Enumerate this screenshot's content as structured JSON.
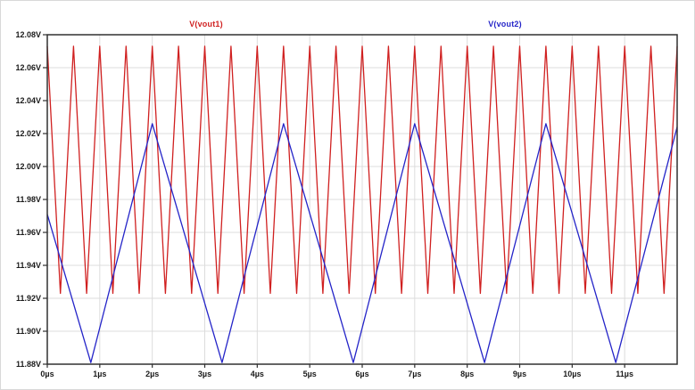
{
  "window": {
    "kind": "waveform-viewer"
  },
  "colors": {
    "trace1": "#d02020",
    "trace2": "#2424c8",
    "grid": "#dcdcdc",
    "axis_border": "#303030",
    "tick_text": "#1a1a1a",
    "background": "#ffffff"
  },
  "chart_data": {
    "type": "line",
    "title": "",
    "xlim": [
      0,
      12
    ],
    "ylim": [
      11.88,
      12.08
    ],
    "grid": true,
    "legend_position": "top-inside",
    "x_ticks": [
      {
        "value": 0,
        "label": "0µs"
      },
      {
        "value": 1,
        "label": "1µs"
      },
      {
        "value": 2,
        "label": "2µs"
      },
      {
        "value": 3,
        "label": "3µs"
      },
      {
        "value": 4,
        "label": "4µs"
      },
      {
        "value": 5,
        "label": "5µs"
      },
      {
        "value": 6,
        "label": "6µs"
      },
      {
        "value": 7,
        "label": "7µs"
      },
      {
        "value": 8,
        "label": "8µs"
      },
      {
        "value": 9,
        "label": "9µs"
      },
      {
        "value": 10,
        "label": "10µs"
      },
      {
        "value": 11,
        "label": "11µs"
      }
    ],
    "y_ticks": [
      {
        "value": 12.08,
        "label": "12.08V"
      },
      {
        "value": 12.06,
        "label": "12.06V"
      },
      {
        "value": 12.04,
        "label": "12.04V"
      },
      {
        "value": 12.02,
        "label": "12.02V"
      },
      {
        "value": 12.0,
        "label": "12.00V"
      },
      {
        "value": 11.98,
        "label": "11.98V"
      },
      {
        "value": 11.96,
        "label": "11.96V"
      },
      {
        "value": 11.94,
        "label": "11.94V"
      },
      {
        "value": 11.92,
        "label": "11.92V"
      },
      {
        "value": 11.9,
        "label": "11.90V"
      },
      {
        "value": 11.88,
        "label": "11.88V"
      }
    ],
    "series": [
      {
        "name": "V(vout1)",
        "color": "#d02020",
        "waveform": "triangle",
        "period_us": 0.5,
        "min_v": 11.923,
        "max_v": 12.073,
        "points": [
          [
            0,
            12.073
          ],
          [
            0.25,
            11.923
          ],
          [
            0.5,
            12.073
          ],
          [
            0.75,
            11.923
          ],
          [
            1,
            12.073
          ],
          [
            1.25,
            11.923
          ],
          [
            1.5,
            12.073
          ],
          [
            1.75,
            11.923
          ],
          [
            2,
            12.073
          ],
          [
            2.25,
            11.923
          ],
          [
            2.5,
            12.073
          ],
          [
            2.75,
            11.923
          ],
          [
            3,
            12.073
          ],
          [
            3.25,
            11.923
          ],
          [
            3.5,
            12.073
          ],
          [
            3.75,
            11.923
          ],
          [
            4,
            12.073
          ],
          [
            4.25,
            11.923
          ],
          [
            4.5,
            12.073
          ],
          [
            4.75,
            11.923
          ],
          [
            5,
            12.073
          ],
          [
            5.25,
            11.923
          ],
          [
            5.5,
            12.073
          ],
          [
            5.75,
            11.923
          ],
          [
            6,
            12.073
          ],
          [
            6.25,
            11.923
          ],
          [
            6.5,
            12.073
          ],
          [
            6.75,
            11.923
          ],
          [
            7,
            12.073
          ],
          [
            7.25,
            11.923
          ],
          [
            7.5,
            12.073
          ],
          [
            7.75,
            11.923
          ],
          [
            8,
            12.073
          ],
          [
            8.25,
            11.923
          ],
          [
            8.5,
            12.073
          ],
          [
            8.75,
            11.923
          ],
          [
            9,
            12.073
          ],
          [
            9.25,
            11.923
          ],
          [
            9.5,
            12.073
          ],
          [
            9.75,
            11.923
          ],
          [
            10,
            12.073
          ],
          [
            10.25,
            11.923
          ],
          [
            10.5,
            12.073
          ],
          [
            10.75,
            11.923
          ],
          [
            11,
            12.073
          ],
          [
            11.25,
            11.923
          ],
          [
            11.5,
            12.073
          ],
          [
            11.75,
            11.923
          ],
          [
            12,
            12.073
          ]
        ]
      },
      {
        "name": "V(vout2)",
        "color": "#2424c8",
        "waveform": "triangle",
        "period_us": 2.5,
        "min_v": 11.881,
        "max_v": 12.026,
        "points": [
          [
            0,
            11.971
          ],
          [
            0.83,
            11.881
          ],
          [
            2,
            12.026
          ],
          [
            3.33,
            11.881
          ],
          [
            4.5,
            12.026
          ],
          [
            5.83,
            11.881
          ],
          [
            7,
            12.026
          ],
          [
            8.33,
            11.881
          ],
          [
            9.5,
            12.026
          ],
          [
            10.83,
            11.881
          ],
          [
            12,
            12.024
          ]
        ]
      }
    ]
  }
}
